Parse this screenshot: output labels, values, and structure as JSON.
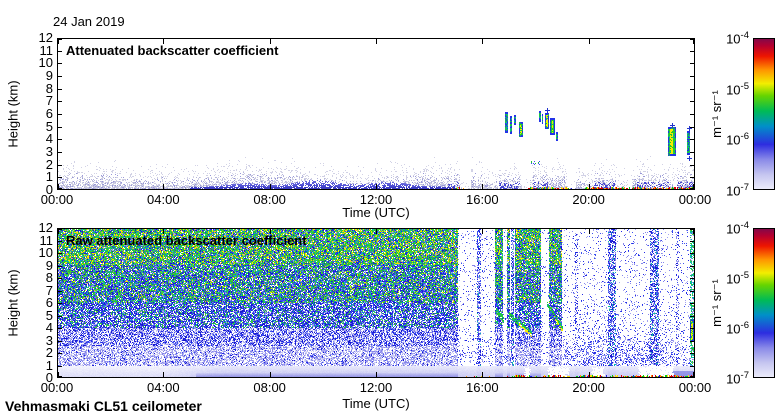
{
  "header": {
    "date": "24 Jan 2019"
  },
  "footer": {
    "station": "Vehmasmaki CL51 ceilometer"
  },
  "axes": {
    "xlabel": "Time (UTC)",
    "ylabel": "Height (km)"
  },
  "palette": {
    "stops": [
      {
        "v": 0.0,
        "c": "#eeeefb"
      },
      {
        "v": 0.1,
        "c": "#c6c6f0"
      },
      {
        "v": 0.2,
        "c": "#8a8ae8"
      },
      {
        "v": 0.3,
        "c": "#2d2de0"
      },
      {
        "v": 0.42,
        "c": "#0090c8"
      },
      {
        "v": 0.52,
        "c": "#00bb55"
      },
      {
        "v": 0.62,
        "c": "#66d400"
      },
      {
        "v": 0.7,
        "c": "#f2ee00"
      },
      {
        "v": 0.79,
        "c": "#ff9400"
      },
      {
        "v": 0.88,
        "c": "#ee1500"
      },
      {
        "v": 0.95,
        "c": "#b40030"
      },
      {
        "v": 1.0,
        "c": "#7c0a4c"
      }
    ]
  },
  "speckle_colors": {
    "green": [
      "#28c832",
      "#1eb44b",
      "#52d22e"
    ],
    "yellow": [
      "#f2ee00",
      "#ffd800"
    ],
    "teal": [
      "#00b4b4",
      "#10c3a0"
    ],
    "blue": [
      "#2329e6",
      "#3c50f0",
      "#1717cf"
    ],
    "lightblue": [
      "#8585ea",
      "#a3a3f2"
    ],
    "pale": [
      "#c9c9f0",
      "#dadaf6"
    ],
    "white": [
      "#ffffff"
    ]
  },
  "chart_data": [
    {
      "type": "heatmap",
      "title": "Attenuated backscatter coefficient",
      "xlabel": "Time (UTC)",
      "ylabel": "Height (km)",
      "x_ticks": [
        "00:00",
        "04:00",
        "08:00",
        "12:00",
        "16:00",
        "20:00",
        "00:00"
      ],
      "x_range_hours": [
        0,
        24
      ],
      "y_ticks": [
        "0",
        "1",
        "2",
        "3",
        "4",
        "5",
        "6",
        "7",
        "8",
        "9",
        "10",
        "11",
        "12"
      ],
      "ylim_km": [
        0,
        12
      ],
      "colorbar": {
        "scale": "log",
        "min": 1e-07,
        "max": 0.0001,
        "unit": "m⁻¹ sr⁻¹",
        "tick_base": "10",
        "tick_exps": [
          "-4",
          "-5",
          "-6",
          "-7"
        ]
      },
      "phenomena": [
        "Boundary-layer aerosol below ~1.3 km all day",
        "Darker aerosol core below ~0.8 km from ~05:30 to 15:00",
        "Mid-level cloud / virga streaks at 4-6 km between 16:50 and 19:00",
        "Cloud layer 2.7-5 km near 23:00-24:00",
        "Colored precipitation signals at the surface after ~15:00"
      ],
      "features": {
        "aerosol": {
          "speckle_top_km": 1.35,
          "dense_core": {
            "t0": 5.3,
            "t1": 14.9,
            "h_km": 0.8
          },
          "bottom_line": {
            "t0": 5.0,
            "t1": 15.0,
            "h_km": 0.18
          },
          "gaps": [
            [
              15.15,
              15.55
            ],
            [
              17.45,
              17.78
            ],
            [
              19.15,
              19.5
            ],
            [
              21.35,
              21.62
            ],
            [
              23.25,
              23.62
            ]
          ],
          "late_blue_spots": [
            [
              14.0,
              15.1
            ],
            [
              16.6,
              17.4
            ],
            [
              17.9,
              18.45
            ],
            [
              20.2,
              21.0
            ],
            [
              21.8,
              23.0
            ],
            [
              23.3,
              23.97
            ]
          ]
        },
        "cloud_bars": [
          {
            "t0": 16.86,
            "t1": 16.96,
            "h0": 4.5,
            "h1": 6.15,
            "style": "thin"
          },
          {
            "t0": 17.05,
            "t1": 17.13,
            "h0": 4.45,
            "h1": 5.85,
            "style": "thin"
          },
          {
            "t0": 17.2,
            "t1": 17.26,
            "h0": 5.1,
            "h1": 5.9,
            "style": "thin"
          },
          {
            "t0": 17.38,
            "t1": 17.54,
            "h0": 4.2,
            "h1": 5.35,
            "style": "bar"
          },
          {
            "t0": 18.12,
            "t1": 18.2,
            "h0": 5.4,
            "h1": 6.25,
            "style": "thin"
          },
          {
            "t0": 18.26,
            "t1": 18.3,
            "h0": 5.2,
            "h1": 6.0,
            "style": "thin"
          },
          {
            "t0": 18.34,
            "t1": 18.5,
            "h0": 4.85,
            "h1": 6.1,
            "style": "bar"
          },
          {
            "t0": 18.55,
            "t1": 18.72,
            "h0": 4.35,
            "h1": 5.65,
            "style": "bar"
          },
          {
            "t0": 18.76,
            "t1": 18.86,
            "h0": 3.9,
            "h1": 4.55,
            "style": "thin"
          },
          {
            "t0": 22.98,
            "t1": 23.28,
            "h0": 2.65,
            "h1": 5.0,
            "style": "bar"
          },
          {
            "t0": 23.7,
            "t1": 23.8,
            "h0": 2.75,
            "h1": 4.65,
            "style": "thin"
          }
        ],
        "markers": [
          {
            "t": 23.12,
            "h": 5.15
          },
          {
            "t": 23.78,
            "h": 4.9
          },
          {
            "t": 23.78,
            "h": 2.55
          },
          {
            "t": 18.42,
            "h": 6.35
          }
        ],
        "spray": [
          {
            "t0": 17.75,
            "t1": 18.15,
            "h": 2.2
          }
        ],
        "surface_dots": [
          [
            14.75,
            15.35,
            0.45
          ],
          [
            17.7,
            19.35,
            0.75
          ],
          [
            19.85,
            23.97,
            0.8
          ]
        ]
      }
    },
    {
      "type": "heatmap",
      "title": "Raw attenuated backscatter coefficient",
      "xlabel": "Time (UTC)",
      "ylabel": "Height (km)",
      "x_ticks": [
        "00:00",
        "04:00",
        "08:00",
        "12:00",
        "16:00",
        "20:00",
        "00:00"
      ],
      "x_range_hours": [
        0,
        24
      ],
      "y_ticks": [
        "0",
        "1",
        "2",
        "3",
        "4",
        "5",
        "6",
        "7",
        "8",
        "9",
        "10",
        "11",
        "12"
      ],
      "ylim_km": [
        0,
        12
      ],
      "colorbar": {
        "scale": "log",
        "min": 1e-07,
        "max": 0.0001,
        "unit": "m⁻¹ sr⁻¹",
        "tick_base": "10",
        "tick_exps": [
          "-4",
          "-5",
          "-6",
          "-7"
        ]
      },
      "phenomena": [
        "Range-dependent background noise increasing with height (white-blue-green-yellow)",
        "Strong attenuation stripes (white columns) after ~15:00",
        "Virga fall streaks descending from ~5-6 km between 17:00 and 19:00",
        "Strong echo 2.9-4.7 km near 23:50",
        "Smooth pale boundary layer below ~1 km"
      ],
      "features": {
        "dense_until": 15.07,
        "noise_bands": [
          {
            "h_min": 9.0,
            "weights": {
              "green": 0.4,
              "yellow": 0.14,
              "teal": 0.12,
              "blue": 0.2,
              "lightblue": 0.08,
              "white": 0.06
            }
          },
          {
            "h_min": 6.0,
            "weights": {
              "green": 0.28,
              "yellow": 0.04,
              "teal": 0.1,
              "blue": 0.38,
              "lightblue": 0.12,
              "white": 0.08
            }
          },
          {
            "h_min": 4.0,
            "weights": {
              "green": 0.12,
              "teal": 0.06,
              "blue": 0.46,
              "lightblue": 0.16,
              "white": 0.2
            }
          },
          {
            "h_min": 2.5,
            "weights": {
              "blue": 0.3,
              "lightblue": 0.3,
              "pale": 0.14,
              "white": 0.26
            }
          },
          {
            "h_min": 0.9,
            "weights": {
              "blue": 0.08,
              "lightblue": 0.36,
              "pale": 0.24,
              "white": 0.32
            }
          }
        ],
        "stripes": [
          {
            "t0": 15.78,
            "t1": 15.92,
            "kind": "blue"
          },
          {
            "t0": 16.45,
            "t1": 16.74,
            "kind": "dense"
          },
          {
            "t0": 16.9,
            "t1": 17.03,
            "kind": "dense"
          },
          {
            "t0": 17.06,
            "t1": 17.19,
            "kind": "blue"
          },
          {
            "t0": 17.22,
            "t1": 18.18,
            "kind": "dense"
          },
          {
            "t0": 18.5,
            "t1": 18.98,
            "kind": "dense"
          },
          {
            "t0": 19.45,
            "t1": 19.58,
            "kind": "bluelight"
          },
          {
            "t0": 20.72,
            "t1": 21.02,
            "kind": "blue"
          },
          {
            "t0": 22.28,
            "t1": 22.62,
            "kind": "blue"
          },
          {
            "t0": 23.28,
            "t1": 23.38,
            "kind": "bluelight"
          },
          {
            "t0": 23.8,
            "t1": 23.98,
            "kind": "teal"
          }
        ],
        "virgas": [
          {
            "t0": 16.5,
            "t1": 16.8,
            "hA": 5.6,
            "hB": 4.8,
            "bright": false
          },
          {
            "t0": 17.0,
            "t1": 17.85,
            "hA": 5.3,
            "hB": 3.7,
            "bright": true
          },
          {
            "t0": 18.42,
            "t1": 19.02,
            "hA": 6.1,
            "hB": 4.0,
            "bright": true
          }
        ],
        "fans": [
          {
            "t0": 18.95,
            "t1": 21.95,
            "hmax": 6.2
          },
          {
            "t0": 20.9,
            "t1": 23.75,
            "hmax": 4.6
          }
        ],
        "white_blobs": [
          {
            "t0": 17.58,
            "t1": 17.82,
            "h1": 0.85
          },
          {
            "t0": 18.42,
            "t1": 19.28,
            "h1": 0.95
          },
          {
            "t0": 20.08,
            "t1": 20.62,
            "h1": 0.9
          },
          {
            "t0": 21.85,
            "t1": 23.22,
            "h1": 1.05
          }
        ],
        "bright_bars": [
          {
            "t0": 23.8,
            "t1": 23.97,
            "h0": 2.9,
            "h1": 4.75,
            "style": "bar"
          }
        ],
        "surface_dots": [
          [
            15.3,
            16.3,
            0.3
          ],
          [
            16.85,
            19.35,
            0.55
          ],
          [
            19.5,
            23.97,
            0.75
          ]
        ]
      }
    }
  ]
}
